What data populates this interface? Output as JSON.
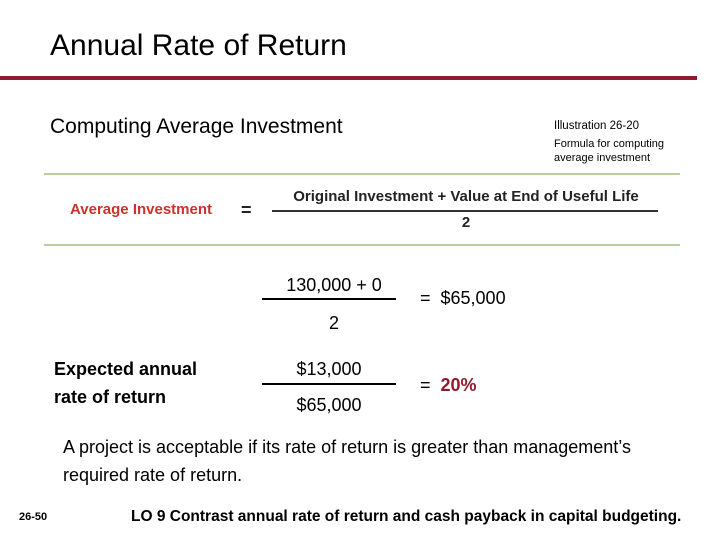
{
  "slide": {
    "title": "Annual Rate of Return",
    "subtitle": "Computing Average Investment",
    "illustration": {
      "number": "Illustration 26-20",
      "caption": "Formula for computing average investment"
    },
    "formula": {
      "left": "Average Investment",
      "equals": "=",
      "numerator": "Original Investment + Value at End of Useful Life",
      "denominator": "2"
    },
    "calc": {
      "numerator": "130,000 + 0",
      "denominator": "2",
      "result": "=  $65,000"
    },
    "rate": {
      "label": "Expected annual rate of return",
      "numerator": "$13,000",
      "denominator": "$65,000",
      "equals": "=  ",
      "result": "20%"
    },
    "note": "A project is acceptable if its rate of return is greater than management’s required rate of return.",
    "slide_number": "26-50",
    "learning_objective": "LO 9  Contrast annual rate of return and cash payback in capital budgeting."
  },
  "colors": {
    "accent": "#8c1c2e",
    "formula_label": "#c8332b",
    "box_border": "#b8cfa0"
  }
}
